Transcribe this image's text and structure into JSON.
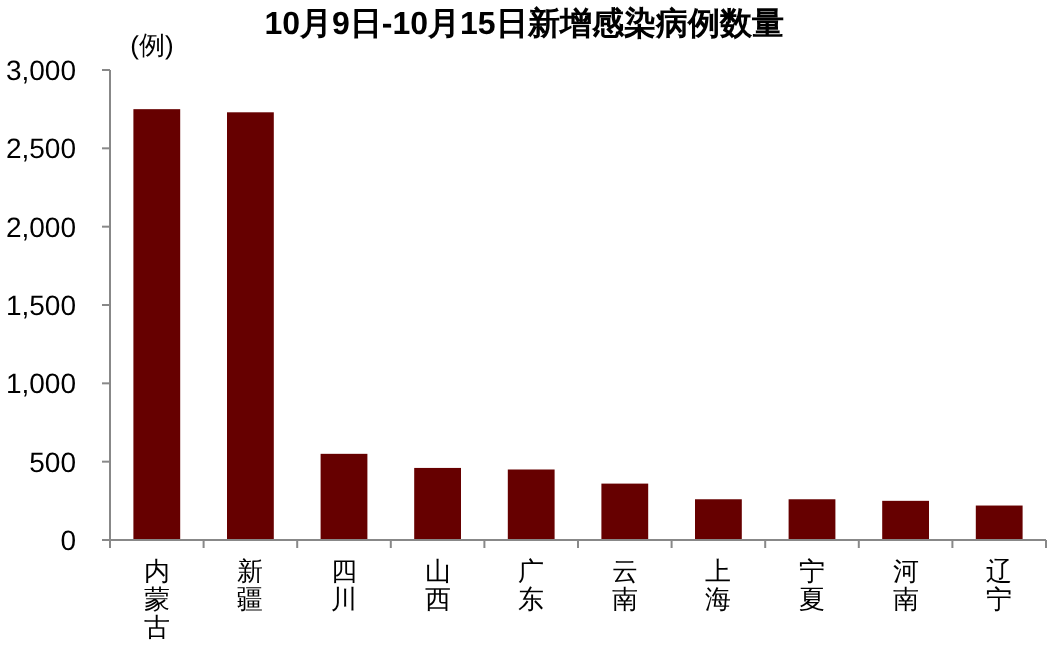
{
  "chart_data": {
    "type": "bar",
    "title": "10月9日-10月15日新增感染病例数量",
    "ylabel": "(例)",
    "categories": [
      "内蒙古",
      "新疆",
      "四川",
      "山西",
      "广东",
      "云南",
      "上海",
      "宁夏",
      "河南",
      "辽宁"
    ],
    "values": [
      2750,
      2730,
      550,
      460,
      450,
      360,
      260,
      260,
      250,
      220
    ],
    "color": "#660000",
    "ylim": [
      0,
      3000
    ],
    "yticks": [
      {
        "value": 0,
        "label": "0"
      },
      {
        "value": 500,
        "label": "500"
      },
      {
        "value": 1000,
        "label": "1,000"
      },
      {
        "value": 1500,
        "label": "1,500"
      },
      {
        "value": 2000,
        "label": "2,000"
      },
      {
        "value": 2500,
        "label": "2,500"
      },
      {
        "value": 3000,
        "label": "3,000"
      }
    ],
    "grid": false
  }
}
